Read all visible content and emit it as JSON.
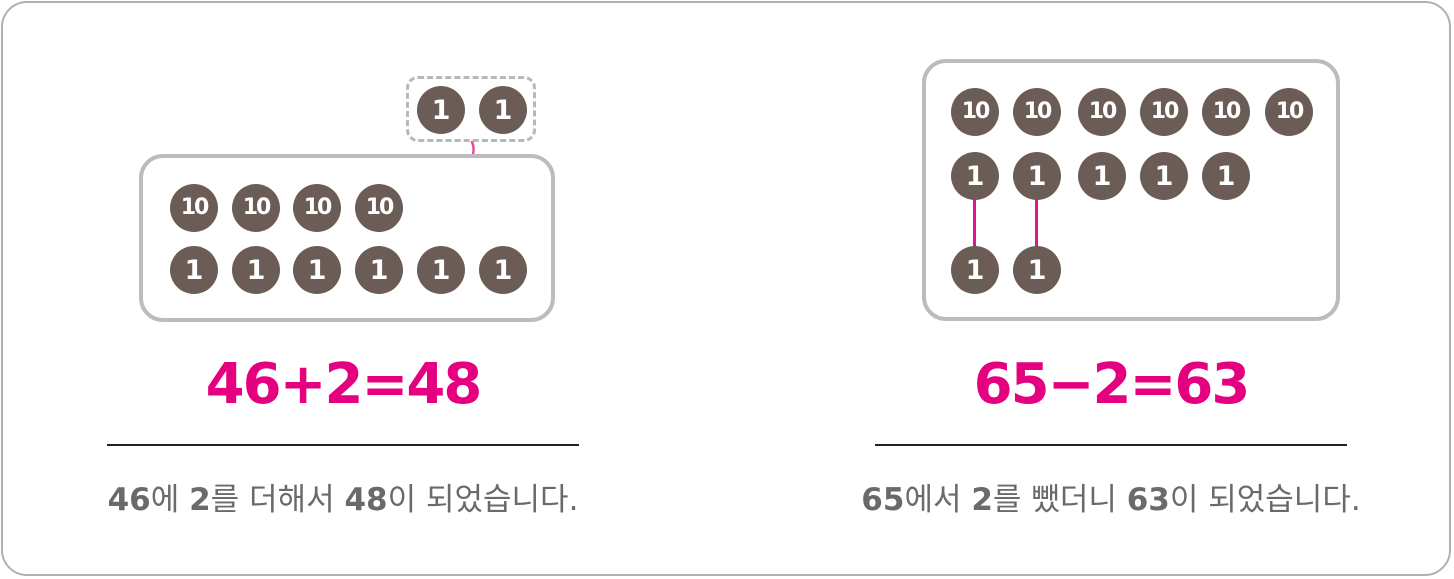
{
  "left_panel": {
    "added_coins": [
      "1",
      "1"
    ],
    "ten_coins": [
      "10",
      "10",
      "10",
      "10"
    ],
    "one_coins": [
      "1",
      "1",
      "1",
      "1",
      "1",
      "1"
    ],
    "equation": "46+2=48",
    "description": {
      "n1": "46",
      "t1": "에 ",
      "n2": "2",
      "t2": "를 더해서 ",
      "n3": "48",
      "t3": "이 되었습니다."
    }
  },
  "right_panel": {
    "ten_coins": [
      "10",
      "10",
      "10",
      "10",
      "10",
      "10"
    ],
    "one_coins": [
      "1",
      "1",
      "1",
      "1",
      "1"
    ],
    "removed_coins": [
      "1",
      "1"
    ],
    "equation": "65−2=63",
    "description": {
      "n1": "65",
      "t1": "에서 ",
      "n2": "2",
      "t2": "를 뺐더니 ",
      "n3": "63",
      "t3": "이 되었습니다."
    }
  },
  "colors": {
    "coin": "#6b5d55",
    "accent": "#e4007f",
    "box_border": "#bcbcbc",
    "text": "#6a6a6a"
  }
}
